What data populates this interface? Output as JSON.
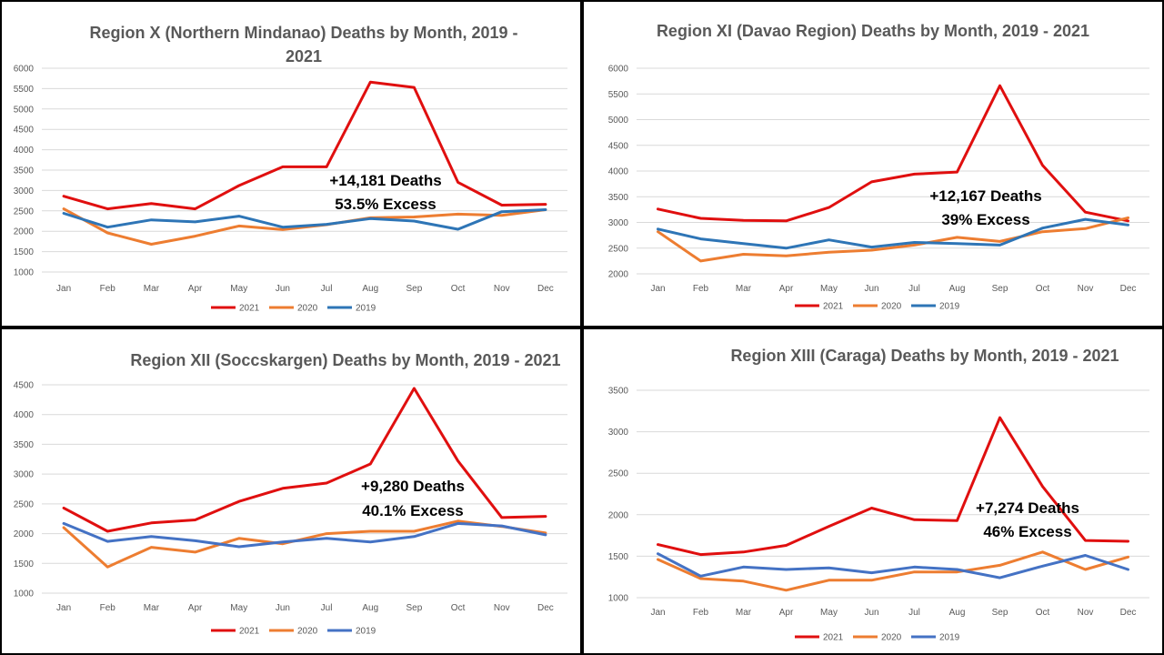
{
  "colors": {
    "s2021": "#e00f0f",
    "s2020": "#ed7d31",
    "s2019": "#2e75b6",
    "s2019b": "#4472c4"
  },
  "chart_data": [
    {
      "type": "line",
      "title_lines": [
        "Region X (Northern Mindanao)  Deaths by Month, 2019 -",
        "2021"
      ],
      "categories": [
        "Jan",
        "Feb",
        "Mar",
        "Apr",
        "May",
        "Jun",
        "Jul",
        "Aug",
        "Sep",
        "Oct",
        "Nov",
        "Dec"
      ],
      "ylim": [
        1000,
        6000
      ],
      "yticks": [
        1000,
        1500,
        2000,
        2500,
        3000,
        3500,
        4000,
        4500,
        5000,
        5500,
        6000
      ],
      "grid": true,
      "legend": "bottom",
      "series": [
        {
          "name": "2021",
          "color": "#e00f0f",
          "values": [
            2860,
            2550,
            2680,
            2550,
            3120,
            3580,
            3580,
            5660,
            5530,
            3200,
            2640,
            2660
          ]
        },
        {
          "name": "2020",
          "color": "#ed7d31",
          "values": [
            2550,
            1960,
            1680,
            1880,
            2130,
            2040,
            2160,
            2330,
            2350,
            2420,
            2390,
            2530
          ]
        },
        {
          "name": "2019",
          "color": "#2e75b6",
          "values": [
            2440,
            2100,
            2280,
            2230,
            2370,
            2100,
            2170,
            2310,
            2250,
            2050,
            2480,
            2530
          ]
        }
      ],
      "annotation_lines": [
        "+14,181 Deaths",
        "53.5% Excess"
      ]
    },
    {
      "type": "line",
      "title_lines": [
        "Region XI (Davao Region) Deaths by Month, 2019 - 2021"
      ],
      "categories": [
        "Jan",
        "Feb",
        "Mar",
        "Apr",
        "May",
        "Jun",
        "Jul",
        "Aug",
        "Sep",
        "Oct",
        "Nov",
        "Dec"
      ],
      "ylim": [
        2000,
        6000
      ],
      "yticks": [
        2000,
        2500,
        3000,
        3500,
        4000,
        4500,
        5000,
        5500,
        6000
      ],
      "grid": true,
      "legend": "bottom",
      "series": [
        {
          "name": "2021",
          "color": "#e00f0f",
          "values": [
            3260,
            3080,
            3040,
            3030,
            3290,
            3790,
            3940,
            3980,
            5660,
            4110,
            3200,
            3030
          ]
        },
        {
          "name": "2020",
          "color": "#ed7d31",
          "values": [
            2820,
            2250,
            2380,
            2350,
            2420,
            2460,
            2560,
            2710,
            2630,
            2820,
            2880,
            3090
          ]
        },
        {
          "name": "2019",
          "color": "#2e75b6",
          "values": [
            2870,
            2680,
            2590,
            2500,
            2660,
            2520,
            2610,
            2590,
            2560,
            2890,
            3060,
            2950
          ]
        }
      ],
      "annotation_lines": [
        "+12,167 Deaths",
        "39% Excess"
      ]
    },
    {
      "type": "line",
      "title_lines": [
        "Region XII (Soccskargen) Deaths by Month, 2019 - 2021"
      ],
      "categories": [
        "Jan",
        "Feb",
        "Mar",
        "Apr",
        "May",
        "Jun",
        "Jul",
        "Aug",
        "Sep",
        "Oct",
        "Nov",
        "Dec"
      ],
      "ylim": [
        1000,
        4500
      ],
      "yticks": [
        1000,
        1500,
        2000,
        2500,
        3000,
        3500,
        4000,
        4500
      ],
      "grid": true,
      "legend": "bottom",
      "series": [
        {
          "name": "2021",
          "color": "#e00f0f",
          "values": [
            2430,
            2040,
            2180,
            2230,
            2540,
            2760,
            2850,
            3170,
            4440,
            3220,
            2270,
            2290
          ]
        },
        {
          "name": "2020",
          "color": "#ed7d31",
          "values": [
            2100,
            1440,
            1770,
            1690,
            1920,
            1830,
            2000,
            2040,
            2040,
            2210,
            2120,
            2010
          ]
        },
        {
          "name": "2019",
          "color": "#4472c4",
          "values": [
            2170,
            1870,
            1950,
            1880,
            1780,
            1860,
            1920,
            1860,
            1950,
            2170,
            2130,
            1980
          ]
        }
      ],
      "annotation_lines": [
        "+9,280 Deaths",
        "40.1% Excess"
      ]
    },
    {
      "type": "line",
      "title_lines": [
        "Region XIII (Caraga) Deaths by Month, 2019 - 2021"
      ],
      "categories": [
        "Jan",
        "Feb",
        "Mar",
        "Apr",
        "May",
        "Jun",
        "Jul",
        "Aug",
        "Sep",
        "Oct",
        "Nov",
        "Dec"
      ],
      "ylim": [
        1000,
        3500
      ],
      "yticks": [
        1000,
        1500,
        2000,
        2500,
        3000,
        3500
      ],
      "grid": true,
      "legend": "bottom",
      "series": [
        {
          "name": "2021",
          "color": "#e00f0f",
          "values": [
            1640,
            1520,
            1550,
            1630,
            1860,
            2080,
            1940,
            1930,
            3170,
            2340,
            1690,
            1680
          ]
        },
        {
          "name": "2020",
          "color": "#ed7d31",
          "values": [
            1460,
            1230,
            1200,
            1090,
            1210,
            1210,
            1310,
            1310,
            1390,
            1550,
            1340,
            1490
          ]
        },
        {
          "name": "2019",
          "color": "#4472c4",
          "values": [
            1530,
            1260,
            1370,
            1340,
            1360,
            1300,
            1370,
            1340,
            1240,
            1380,
            1510,
            1340
          ]
        }
      ],
      "annotation_lines": [
        "+7,274 Deaths",
        "46% Excess"
      ]
    }
  ]
}
